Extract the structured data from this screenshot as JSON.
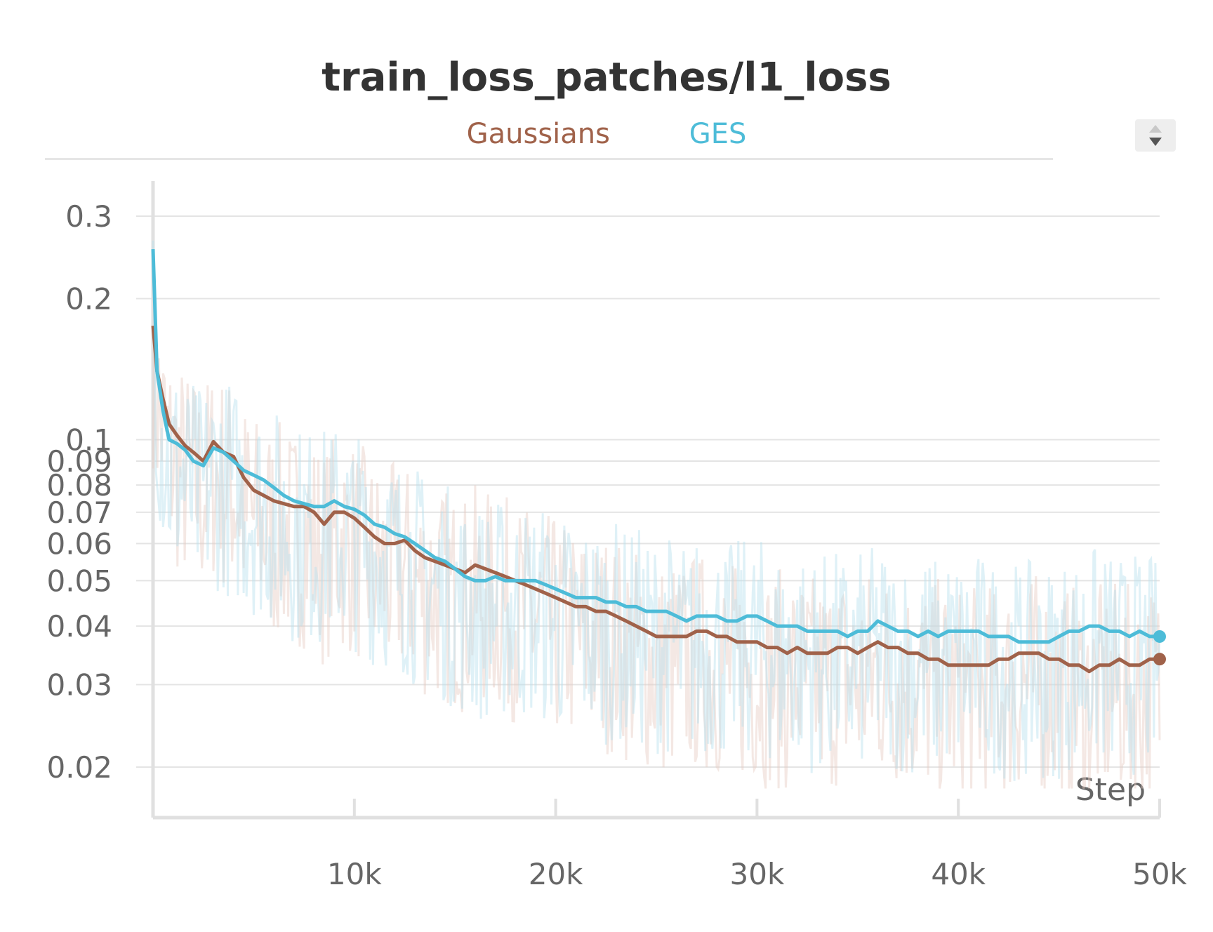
{
  "chart_data": {
    "type": "line",
    "title": "train_loss_patches/l1_loss",
    "xlabel": "Step",
    "ylabel": "",
    "x_ticks": [
      "10k",
      "20k",
      "30k",
      "40k",
      "50k"
    ],
    "x_tick_values": [
      10000,
      20000,
      30000,
      40000,
      50000
    ],
    "y_ticks": [
      "0.02",
      "0.03",
      "0.04",
      "0.05",
      "0.06",
      "0.07",
      "0.08",
      "0.09",
      "0.1",
      "0.2",
      "0.3"
    ],
    "y_tick_values": [
      0.02,
      0.03,
      0.04,
      0.05,
      0.06,
      0.07,
      0.08,
      0.09,
      0.1,
      0.2,
      0.3
    ],
    "xlim": [
      0,
      50000
    ],
    "ylim": [
      0.017,
      0.35
    ],
    "yscale": "log",
    "grid": true,
    "legend_position": "top-center",
    "series": [
      {
        "name": "Gaussians",
        "color": "#a0624a",
        "x": [
          0,
          200,
          500,
          800,
          1200,
          1600,
          2000,
          2500,
          3000,
          3500,
          4000,
          4500,
          5000,
          5500,
          6000,
          6500,
          7000,
          7500,
          8000,
          8500,
          9000,
          9500,
          10000,
          10500,
          11000,
          11500,
          12000,
          12500,
          13000,
          13500,
          14000,
          14500,
          15000,
          15500,
          16000,
          16500,
          17000,
          17500,
          18000,
          18500,
          19000,
          19500,
          20000,
          20500,
          21000,
          21500,
          22000,
          22500,
          23000,
          23500,
          24000,
          24500,
          25000,
          25500,
          26000,
          26500,
          27000,
          27500,
          28000,
          28500,
          29000,
          29500,
          30000,
          30500,
          31000,
          31500,
          32000,
          32500,
          33000,
          33500,
          34000,
          34500,
          35000,
          35500,
          36000,
          36500,
          37000,
          37500,
          38000,
          38500,
          39000,
          39500,
          40000,
          40500,
          41000,
          41500,
          42000,
          42500,
          43000,
          43500,
          44000,
          44500,
          45000,
          45500,
          46000,
          46500,
          47000,
          47500,
          48000,
          48500,
          49000,
          49500,
          50000
        ],
        "values": [
          0.175,
          0.14,
          0.122,
          0.108,
          0.102,
          0.097,
          0.094,
          0.09,
          0.099,
          0.094,
          0.092,
          0.083,
          0.078,
          0.076,
          0.074,
          0.073,
          0.072,
          0.072,
          0.07,
          0.066,
          0.07,
          0.07,
          0.068,
          0.065,
          0.062,
          0.06,
          0.06,
          0.061,
          0.058,
          0.056,
          0.055,
          0.054,
          0.053,
          0.052,
          0.054,
          0.053,
          0.052,
          0.051,
          0.05,
          0.049,
          0.048,
          0.047,
          0.046,
          0.045,
          0.044,
          0.044,
          0.043,
          0.043,
          0.042,
          0.041,
          0.04,
          0.039,
          0.038,
          0.038,
          0.038,
          0.038,
          0.039,
          0.039,
          0.038,
          0.038,
          0.037,
          0.037,
          0.037,
          0.036,
          0.036,
          0.035,
          0.036,
          0.035,
          0.035,
          0.035,
          0.036,
          0.036,
          0.035,
          0.036,
          0.037,
          0.036,
          0.036,
          0.035,
          0.035,
          0.034,
          0.034,
          0.033,
          0.033,
          0.033,
          0.033,
          0.033,
          0.034,
          0.034,
          0.035,
          0.035,
          0.035,
          0.034,
          0.034,
          0.033,
          0.033,
          0.032,
          0.033,
          0.033,
          0.034,
          0.033,
          0.033,
          0.034,
          0.034
        ]
      },
      {
        "name": "GES",
        "color": "#4dbcd8",
        "x": [
          0,
          200,
          500,
          800,
          1200,
          1600,
          2000,
          2500,
          3000,
          3500,
          4000,
          4500,
          5000,
          5500,
          6000,
          6500,
          7000,
          7500,
          8000,
          8500,
          9000,
          9500,
          10000,
          10500,
          11000,
          11500,
          12000,
          12500,
          13000,
          13500,
          14000,
          14500,
          15000,
          15500,
          16000,
          16500,
          17000,
          17500,
          18000,
          18500,
          19000,
          19500,
          20000,
          20500,
          21000,
          21500,
          22000,
          22500,
          23000,
          23500,
          24000,
          24500,
          25000,
          25500,
          26000,
          26500,
          27000,
          27500,
          28000,
          28500,
          29000,
          29500,
          30000,
          30500,
          31000,
          31500,
          32000,
          32500,
          33000,
          33500,
          34000,
          34500,
          35000,
          35500,
          36000,
          36500,
          37000,
          37500,
          38000,
          38500,
          39000,
          39500,
          40000,
          40500,
          41000,
          41500,
          42000,
          42500,
          43000,
          43500,
          44000,
          44500,
          45000,
          45500,
          46000,
          46500,
          47000,
          47500,
          48000,
          48500,
          49000,
          49500,
          50000
        ],
        "values": [
          0.255,
          0.14,
          0.115,
          0.1,
          0.098,
          0.095,
          0.09,
          0.088,
          0.096,
          0.094,
          0.09,
          0.086,
          0.084,
          0.082,
          0.079,
          0.076,
          0.074,
          0.073,
          0.072,
          0.072,
          0.074,
          0.072,
          0.071,
          0.069,
          0.066,
          0.065,
          0.063,
          0.062,
          0.06,
          0.058,
          0.056,
          0.055,
          0.053,
          0.051,
          0.05,
          0.05,
          0.051,
          0.05,
          0.05,
          0.05,
          0.05,
          0.049,
          0.048,
          0.047,
          0.046,
          0.046,
          0.046,
          0.045,
          0.045,
          0.044,
          0.044,
          0.043,
          0.043,
          0.043,
          0.042,
          0.041,
          0.042,
          0.042,
          0.042,
          0.041,
          0.041,
          0.042,
          0.042,
          0.041,
          0.04,
          0.04,
          0.04,
          0.039,
          0.039,
          0.039,
          0.039,
          0.038,
          0.039,
          0.039,
          0.041,
          0.04,
          0.039,
          0.039,
          0.038,
          0.039,
          0.038,
          0.039,
          0.039,
          0.039,
          0.039,
          0.038,
          0.038,
          0.038,
          0.037,
          0.037,
          0.037,
          0.037,
          0.038,
          0.039,
          0.039,
          0.04,
          0.04,
          0.039,
          0.039,
          0.038,
          0.039,
          0.038,
          0.038
        ]
      }
    ]
  }
}
